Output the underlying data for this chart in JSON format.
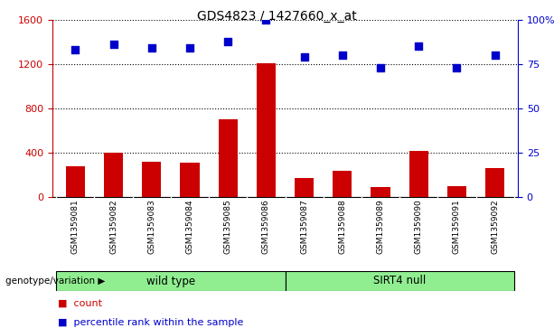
{
  "title": "GDS4823 / 1427660_x_at",
  "samples": [
    "GSM1359081",
    "GSM1359082",
    "GSM1359083",
    "GSM1359084",
    "GSM1359085",
    "GSM1359086",
    "GSM1359087",
    "GSM1359088",
    "GSM1359089",
    "GSM1359090",
    "GSM1359091",
    "GSM1359092"
  ],
  "counts": [
    280,
    400,
    320,
    310,
    700,
    1210,
    170,
    240,
    90,
    420,
    95,
    260
  ],
  "percentiles": [
    83,
    86,
    84,
    84,
    88,
    100,
    79,
    80,
    73,
    85,
    73,
    80
  ],
  "bar_color": "#CC0000",
  "scatter_color": "#0000CC",
  "left_yticks": [
    0,
    400,
    800,
    1200,
    1600
  ],
  "right_yticks": [
    0,
    25,
    50,
    75,
    100
  ],
  "ylim_left": [
    0,
    1600
  ],
  "ylim_right": [
    0,
    100
  ],
  "legend_count_label": "count",
  "legend_percentile_label": "percentile rank within the sample",
  "group_label_prefix": "genotype/variation",
  "tick_label_area_color": "#C0C0C0",
  "group_color": "#90EE90",
  "group_info": [
    {
      "label": "wild type",
      "start": 0,
      "end": 6
    },
    {
      "label": "SIRT4 null",
      "start": 6,
      "end": 12
    }
  ]
}
